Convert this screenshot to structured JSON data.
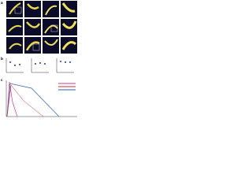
{
  "figure": {
    "panel_labels": [
      "a",
      "b",
      "c"
    ]
  }
}
